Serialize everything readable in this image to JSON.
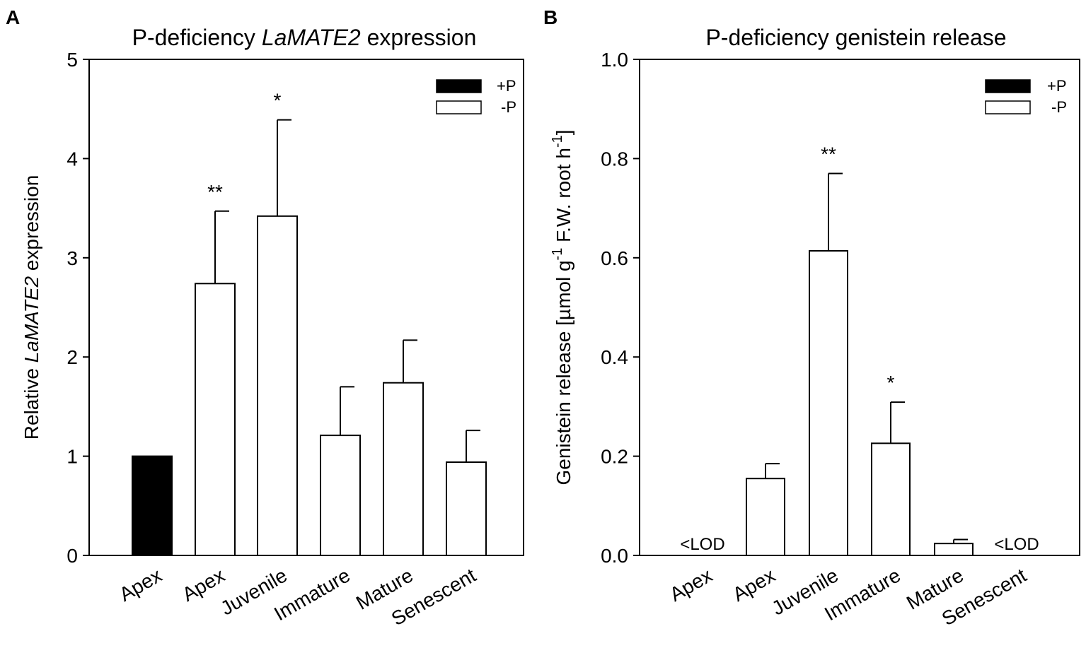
{
  "legend": {
    "plus_p": "+P",
    "minus_p": "-P"
  },
  "colors": {
    "plus_p": "#000000",
    "minus_p": "#ffffff"
  },
  "chart_data": [
    {
      "panel_label": "A",
      "type": "bar",
      "title_prefix": "P-deficiency ",
      "title_gene": "LaMATE2",
      "title_suffix": " expression",
      "ylabel_prefix": "Relative ",
      "ylabel_gene": "LaMATE2",
      "ylabel_suffix": " expression",
      "xlabel": "",
      "ylim": [
        0,
        5
      ],
      "ytick_values": [
        0,
        1,
        2,
        3,
        4,
        5
      ],
      "yticks": [
        "0",
        "1",
        "2",
        "3",
        "4",
        "5"
      ],
      "categories": [
        "Apex",
        "Apex",
        "Juvenile",
        "Immature",
        "Mature",
        "Senescent"
      ],
      "series": [
        "+P",
        "-P",
        "-P",
        "-P",
        "-P",
        "-P"
      ],
      "values": [
        1.0,
        2.74,
        3.42,
        1.21,
        1.74,
        0.94
      ],
      "errors": [
        0,
        0.73,
        0.97,
        0.49,
        0.43,
        0.32
      ],
      "annotations": [
        "",
        "**",
        "*",
        "",
        "",
        ""
      ]
    },
    {
      "panel_label": "B",
      "type": "bar",
      "title": "P-deficiency genistein release",
      "ylabel_main": "Genistein release",
      "ylabel_unit_a": "[µmol  g",
      "ylabel_exp_a": "-1",
      "ylabel_unit_b": " F.W. root h",
      "ylabel_exp_b": "-1",
      "ylabel_close": "]",
      "xlabel": "",
      "ylim": [
        0,
        1.0
      ],
      "ytick_values": [
        0,
        0.2,
        0.4,
        0.6,
        0.8,
        1.0
      ],
      "yticks": [
        "0.0",
        "0.2",
        "0.4",
        "0.6",
        "0.8",
        "1.0"
      ],
      "categories": [
        "Apex",
        "Apex",
        "Juvenile",
        "Immature",
        "Mature",
        "Senescent"
      ],
      "series": [
        "+P",
        "-P",
        "-P",
        "-P",
        "-P",
        "-P"
      ],
      "values": [
        0,
        0.155,
        0.614,
        0.226,
        0.024,
        0
      ],
      "errors": [
        0,
        0.03,
        0.156,
        0.083,
        0.008,
        0
      ],
      "annotations": [
        "<LOD",
        "",
        "**",
        "*",
        "",
        "<LOD"
      ]
    }
  ]
}
